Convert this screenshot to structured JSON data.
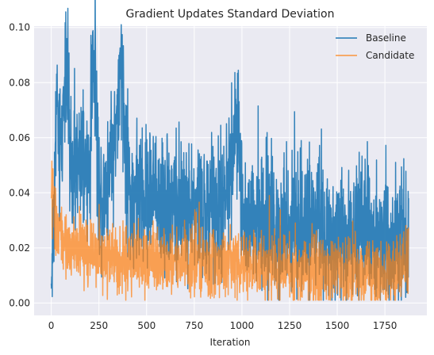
{
  "chart_data": {
    "type": "line",
    "title": "Gradient Updates Standard Deviation",
    "xlabel": "Iteration",
    "ylabel": "",
    "xlim": [
      -90,
      1970
    ],
    "ylim": [
      -0.0045,
      0.1005
    ],
    "xticks": [
      0,
      250,
      500,
      750,
      1000,
      1250,
      1500,
      1750
    ],
    "xtick_labels": [
      "0",
      "250",
      "500",
      "750",
      "1000",
      "1250",
      "1500",
      "1750"
    ],
    "yticks": [
      0.0,
      0.02,
      0.04,
      0.06,
      0.08,
      0.1
    ],
    "ytick_labels": [
      "0.00",
      "0.02",
      "0.04",
      "0.06",
      "0.08",
      "0.10"
    ],
    "grid": true,
    "legend_position": "top-right",
    "series": [
      {
        "name": "Baseline",
        "color": "#1f77b4",
        "opacity": 0.9,
        "anchors": [
          [
            0,
            0.007
          ],
          [
            10,
            0.028
          ],
          [
            20,
            0.05
          ],
          [
            30,
            0.08
          ],
          [
            40,
            0.048
          ],
          [
            60,
            0.065
          ],
          [
            80,
            0.095
          ],
          [
            100,
            0.045
          ],
          [
            150,
            0.05
          ],
          [
            200,
            0.045
          ],
          [
            220,
            0.095
          ],
          [
            250,
            0.04
          ],
          [
            300,
            0.045
          ],
          [
            350,
            0.07
          ],
          [
            370,
            0.085
          ],
          [
            400,
            0.04
          ],
          [
            500,
            0.038
          ],
          [
            600,
            0.037
          ],
          [
            700,
            0.035
          ],
          [
            800,
            0.033
          ],
          [
            900,
            0.032
          ],
          [
            980,
            0.066
          ],
          [
            1000,
            0.03
          ],
          [
            1100,
            0.03
          ],
          [
            1200,
            0.028
          ],
          [
            1300,
            0.028
          ],
          [
            1400,
            0.027
          ],
          [
            1500,
            0.026
          ],
          [
            1600,
            0.025
          ],
          [
            1700,
            0.025
          ],
          [
            1800,
            0.024
          ],
          [
            1870,
            0.022
          ]
        ],
        "noise": 0.012,
        "floor": 0.001
      },
      {
        "name": "Candidate",
        "color": "#ff7f0e",
        "opacity": 0.7,
        "anchors": [
          [
            0,
            0.038
          ],
          [
            10,
            0.04
          ],
          [
            20,
            0.03
          ],
          [
            40,
            0.026
          ],
          [
            60,
            0.022
          ],
          [
            100,
            0.02
          ],
          [
            150,
            0.019
          ],
          [
            200,
            0.018
          ],
          [
            300,
            0.017
          ],
          [
            400,
            0.016
          ],
          [
            500,
            0.016
          ],
          [
            600,
            0.015
          ],
          [
            700,
            0.015
          ],
          [
            800,
            0.014
          ],
          [
            900,
            0.014
          ],
          [
            1000,
            0.013
          ],
          [
            1100,
            0.013
          ],
          [
            1200,
            0.012
          ],
          [
            1300,
            0.012
          ],
          [
            1400,
            0.012
          ],
          [
            1500,
            0.011
          ],
          [
            1600,
            0.011
          ],
          [
            1700,
            0.011
          ],
          [
            1800,
            0.011
          ],
          [
            1870,
            0.015
          ]
        ],
        "noise": 0.006,
        "floor": 0.001
      }
    ],
    "n_points": 1875
  }
}
